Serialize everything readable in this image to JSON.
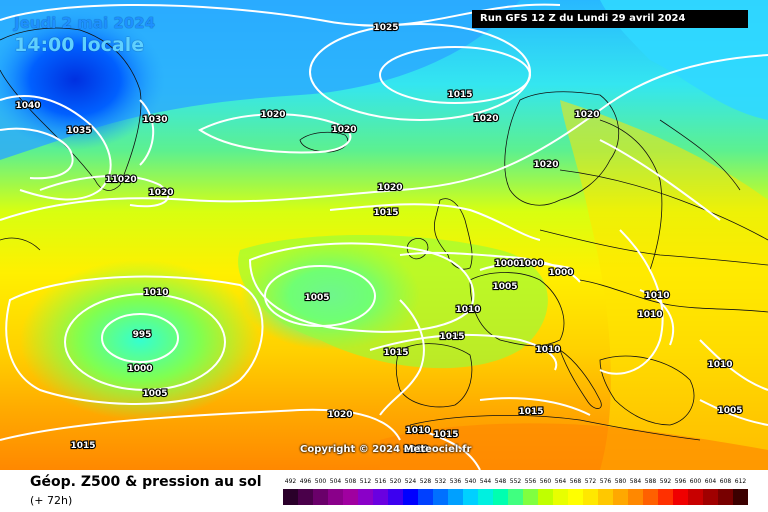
{
  "header": {
    "date_text": "Jeudi 2 mai 2024",
    "time_text": "14:00 locale",
    "run_text": "Run GFS 12 Z du Lundi 29 avril 2024"
  },
  "copyright": "Copyright © 2024 Meteociel.fr",
  "footer": {
    "title": "Géop. Z500 & pression au sol",
    "lead_time": "(+ 72h)"
  },
  "legend": {
    "levels": [
      {
        "label": "492",
        "color": "#2a002a"
      },
      {
        "label": "496",
        "color": "#4a004a"
      },
      {
        "label": "500",
        "color": "#6a006a"
      },
      {
        "label": "504",
        "color": "#8a008a"
      },
      {
        "label": "508",
        "color": "#a000a0"
      },
      {
        "label": "512",
        "color": "#8a00c8"
      },
      {
        "label": "516",
        "color": "#6a00e0"
      },
      {
        "label": "520",
        "color": "#3c00f0"
      },
      {
        "label": "524",
        "color": "#0000ff"
      },
      {
        "label": "528",
        "color": "#0040ff"
      },
      {
        "label": "532",
        "color": "#0070ff"
      },
      {
        "label": "536",
        "color": "#00a0ff"
      },
      {
        "label": "540",
        "color": "#00d0ff"
      },
      {
        "label": "544",
        "color": "#00f0e0"
      },
      {
        "label": "548",
        "color": "#00ffb0"
      },
      {
        "label": "552",
        "color": "#40ff80"
      },
      {
        "label": "556",
        "color": "#80ff40"
      },
      {
        "label": "560",
        "color": "#c0ff00"
      },
      {
        "label": "564",
        "color": "#e8ff00"
      },
      {
        "label": "568",
        "color": "#ffff00"
      },
      {
        "label": "572",
        "color": "#ffe800"
      },
      {
        "label": "576",
        "color": "#ffc800"
      },
      {
        "label": "580",
        "color": "#ffa800"
      },
      {
        "label": "584",
        "color": "#ff8800"
      },
      {
        "label": "588",
        "color": "#ff6000"
      },
      {
        "label": "592",
        "color": "#ff3000"
      },
      {
        "label": "596",
        "color": "#f00000"
      },
      {
        "label": "600",
        "color": "#c80000"
      },
      {
        "label": "604",
        "color": "#a00000"
      },
      {
        "label": "608",
        "color": "#780000"
      },
      {
        "label": "612",
        "color": "#3c0000"
      }
    ]
  },
  "pressure_labels": [
    "1025",
    "1015",
    "1040",
    "1035",
    "1030",
    "1020",
    "1020",
    "1020",
    "1020",
    "1020",
    "11020",
    "1020",
    "1020",
    "1015",
    "1010",
    "1005",
    "995",
    "1000",
    "1005",
    "1015",
    "1000",
    "1000",
    "1000",
    "1005",
    "1010",
    "1015",
    "1015",
    "1010",
    "1010",
    "1010",
    "1010",
    "1010",
    "1020",
    "1015",
    "1015",
    "1010",
    "1005"
  ]
}
